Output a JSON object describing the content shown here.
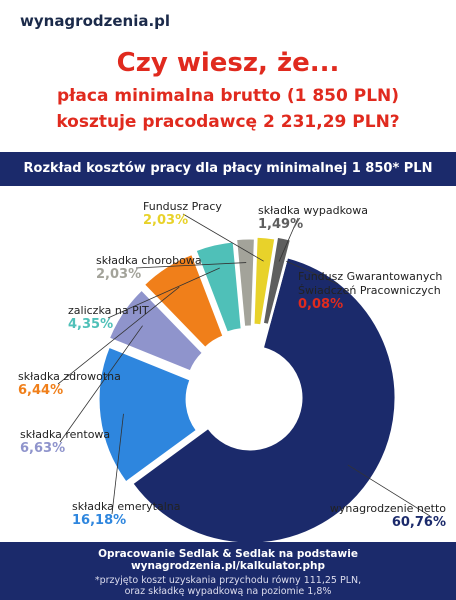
{
  "chart_data": {
    "type": "donut",
    "site": "wynagrodzenia.pl",
    "title": [
      "Czy wiesz, że...",
      "płaca minimalna brutto (1 850 PLN)",
      "kosztuje pracodawcę 2 231,29 PLN?"
    ],
    "subtitle": "Rozkład kosztów pracy dla płacy minimalnej 1 850* PLN",
    "categories": [
      "wynagrodzenie netto",
      "składka emerytalna",
      "składka rentowa",
      "składka zdrowotna",
      "zaliczka na PIT",
      "składka chorobowa",
      "Fundusz Pracy",
      "składka wypadkowa",
      "Fundusz Gwarantowanych Świadczeń Pracowniczych"
    ],
    "values": [
      60.76,
      16.18,
      6.63,
      6.44,
      4.35,
      2.03,
      2.03,
      1.49,
      0.08
    ],
    "value_labels": [
      "60,76%",
      "16,18%",
      "6,63%",
      "6,44%",
      "4,35%",
      "2,03%",
      "2,03%",
      "1,49%",
      "0,08%"
    ],
    "colors": [
      "#1b2a6b",
      "#2e86de",
      "#8f94cc",
      "#f07f1a",
      "#4fc0b8",
      "#a3a39a",
      "#e8d22a",
      "#5e5e5e",
      "#e02a1e"
    ],
    "footer": [
      "Opracowanie Sedlak & Sedlak na podstawie wynagrodzenia.pl/kalkulator.php",
      "*przyjęto koszt uzyskania przychodu równy 111,25 PLN,",
      "oraz składkę wypadkową na poziomie 1,8%"
    ]
  }
}
